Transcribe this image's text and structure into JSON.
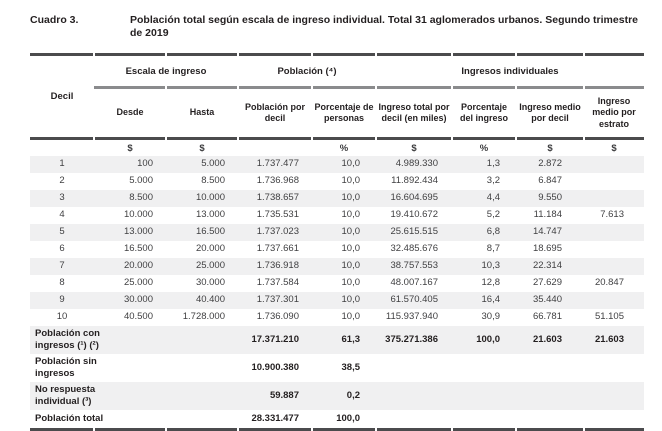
{
  "title": {
    "label": "Cuadro 3.",
    "text": "Población total según escala de ingreso individual. Total 31 aglomerados urbanos. Segundo trimestre de 2019"
  },
  "table": {
    "decil_header": "Decil",
    "groups": [
      "Escala de ingreso",
      "Población (⁴)",
      "Ingresos individuales"
    ],
    "columns": [
      {
        "header": "Decil",
        "unit": ""
      },
      {
        "header": "Desde",
        "unit": "$"
      },
      {
        "header": "Hasta",
        "unit": "$"
      },
      {
        "header": "Población por decil",
        "unit": ""
      },
      {
        "header": "Porcentaje de personas",
        "unit": "%"
      },
      {
        "header": "Ingreso total por decil (en miles)",
        "unit": "$"
      },
      {
        "header": "Porcentaje del ingreso",
        "unit": "%"
      },
      {
        "header": "Ingreso medio por decil",
        "unit": "$"
      },
      {
        "header": "Ingreso medio por estrato",
        "unit": "$"
      }
    ],
    "rows": [
      [
        "1",
        "100",
        "5.000",
        "1.737.477",
        "10,0",
        "4.989.330",
        "1,3",
        "2.872",
        ""
      ],
      [
        "2",
        "5.000",
        "8.500",
        "1.736.968",
        "10,0",
        "11.892.434",
        "3,2",
        "6.847",
        ""
      ],
      [
        "3",
        "8.500",
        "10.000",
        "1.738.657",
        "10,0",
        "16.604.695",
        "4,4",
        "9.550",
        ""
      ],
      [
        "4",
        "10.000",
        "13.000",
        "1.735.531",
        "10,0",
        "19.410.672",
        "5,2",
        "11.184",
        "7.613"
      ],
      [
        "5",
        "13.000",
        "16.500",
        "1.737.023",
        "10,0",
        "25.615.515",
        "6,8",
        "14.747",
        ""
      ],
      [
        "6",
        "16.500",
        "20.000",
        "1.737.661",
        "10,0",
        "32.485.676",
        "8,7",
        "18.695",
        ""
      ],
      [
        "7",
        "20.000",
        "25.000",
        "1.736.918",
        "10,0",
        "38.757.553",
        "10,3",
        "22.314",
        ""
      ],
      [
        "8",
        "25.000",
        "30.000",
        "1.737.584",
        "10,0",
        "48.007.167",
        "12,8",
        "27.629",
        "20.847"
      ],
      [
        "9",
        "30.000",
        "40.400",
        "1.737.301",
        "10,0",
        "61.570.405",
        "16,4",
        "35.440",
        ""
      ],
      [
        "10",
        "40.500",
        "1.728.000",
        "1.736.090",
        "10,0",
        "115.937.940",
        "30,9",
        "66.781",
        "51.105"
      ]
    ],
    "summary_rows": [
      {
        "label": "Población con ingresos (¹) (²)",
        "values": [
          "17.371.210",
          "61,3",
          "375.271.386",
          "100,0",
          "21.603",
          "21.603"
        ]
      },
      {
        "label": "Población sin ingresos",
        "values": [
          "10.900.380",
          "38,5",
          "",
          "",
          "",
          ""
        ]
      },
      {
        "label": "No respuesta individual (³)",
        "values": [
          "59.887",
          "0,2",
          "",
          "",
          "",
          ""
        ]
      },
      {
        "label": "Población total",
        "values": [
          "28.331.477",
          "100,0",
          "",
          "",
          "",
          ""
        ]
      }
    ]
  },
  "colors": {
    "zebra": "#f0f0f1",
    "rule_dark": "#4b4b4d",
    "rule_gray": "#8a8b8d",
    "heading_text": "#231f20",
    "data_text": "#3f3f41"
  }
}
